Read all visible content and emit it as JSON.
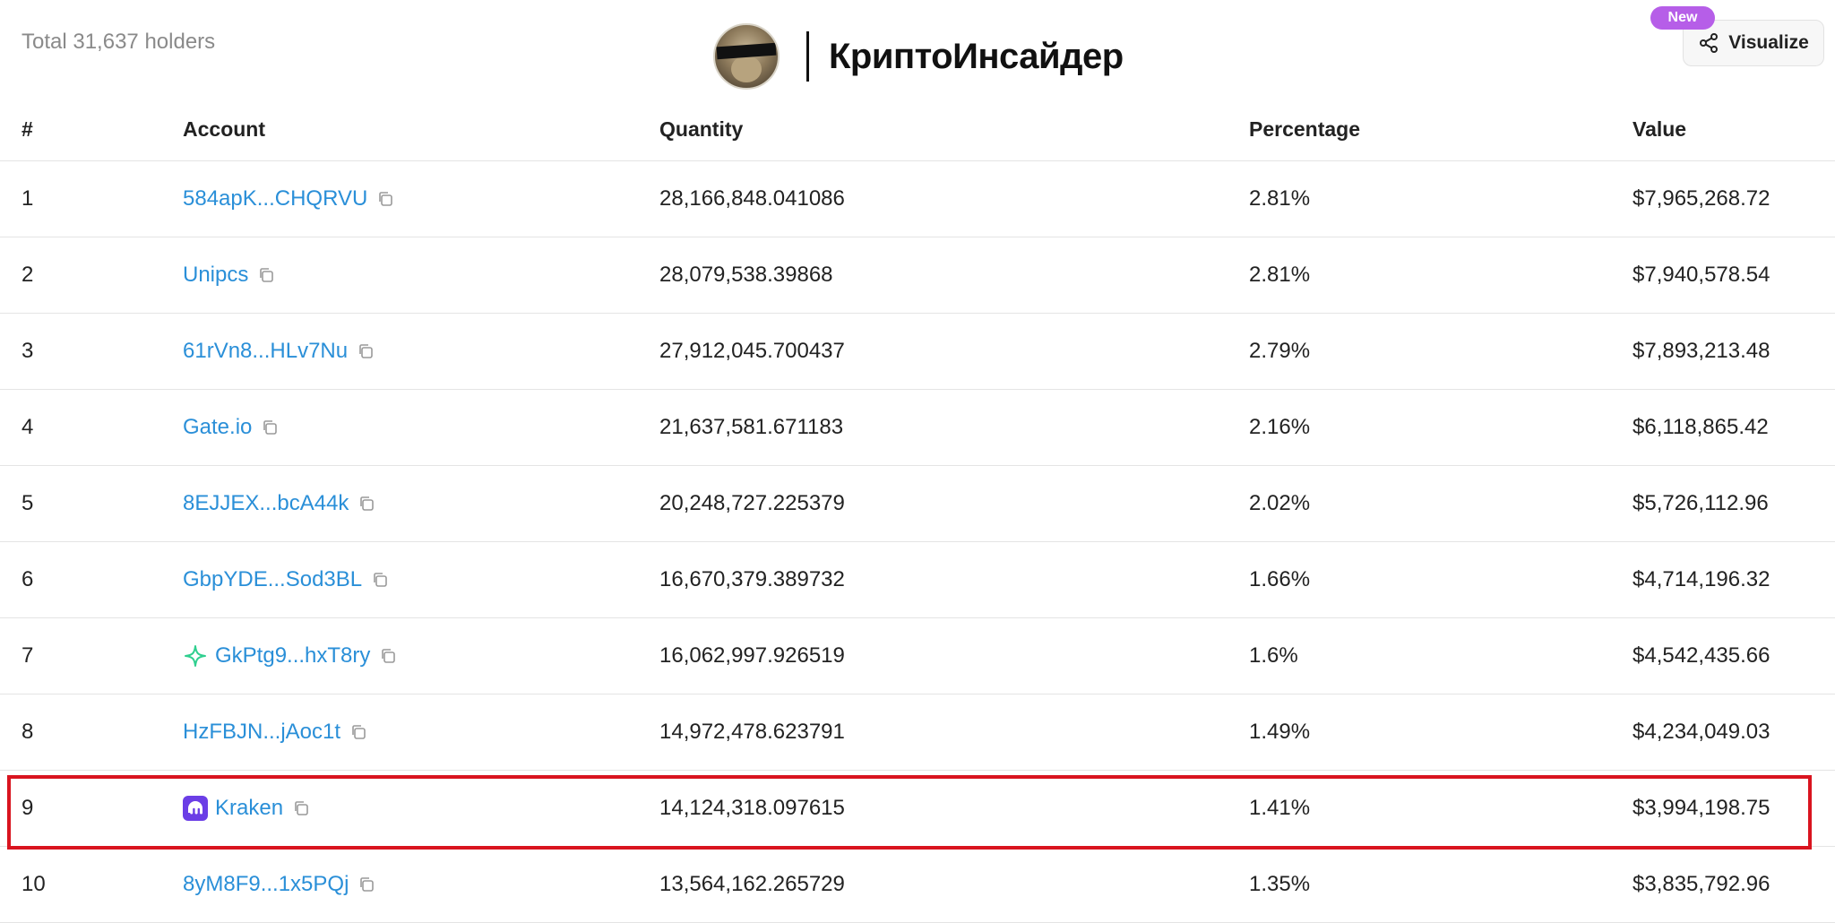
{
  "header": {
    "total_holders": "Total 31,637 holders",
    "brand_name": "КриптоИнсайдер",
    "visualize_label": "Visualize",
    "new_badge": "New"
  },
  "table": {
    "columns": [
      "#",
      "Account",
      "Quantity",
      "Percentage",
      "Value"
    ],
    "rows": [
      {
        "rank": "1",
        "account": "584apK...CHQRVU",
        "quantity": "28,166,848.041086",
        "percentage": "2.81%",
        "value": "$7,965,268.72",
        "icon": null
      },
      {
        "rank": "2",
        "account": "Unipcs",
        "quantity": "28,079,538.39868",
        "percentage": "2.81%",
        "value": "$7,940,578.54",
        "icon": null
      },
      {
        "rank": "3",
        "account": "61rVn8...HLv7Nu",
        "quantity": "27,912,045.700437",
        "percentage": "2.79%",
        "value": "$7,893,213.48",
        "icon": null
      },
      {
        "rank": "4",
        "account": "Gate.io",
        "quantity": "21,637,581.671183",
        "percentage": "2.16%",
        "value": "$6,118,865.42",
        "icon": null
      },
      {
        "rank": "5",
        "account": "8EJJEX...bcA44k",
        "quantity": "20,248,727.225379",
        "percentage": "2.02%",
        "value": "$5,726,112.96",
        "icon": null
      },
      {
        "rank": "6",
        "account": "GbpYDE...Sod3BL",
        "quantity": "16,670,379.389732",
        "percentage": "1.66%",
        "value": "$4,714,196.32",
        "icon": null
      },
      {
        "rank": "7",
        "account": "GkPtg9...hxT8ry",
        "quantity": "16,062,997.926519",
        "percentage": "1.6%",
        "value": "$4,542,435.66",
        "icon": "sparkle-icon"
      },
      {
        "rank": "8",
        "account": "HzFBJN...jAoc1t",
        "quantity": "14,972,478.623791",
        "percentage": "1.49%",
        "value": "$4,234,049.03",
        "icon": null
      },
      {
        "rank": "9",
        "account": "Kraken",
        "quantity": "14,124,318.097615",
        "percentage": "1.41%",
        "value": "$3,994,198.75",
        "icon": "kraken-logo-icon",
        "highlighted": true
      },
      {
        "rank": "10",
        "account": "8yM8F9...1x5PQj",
        "quantity": "13,564,162.265729",
        "percentage": "1.35%",
        "value": "$3,835,792.96",
        "icon": null
      }
    ]
  },
  "colors": {
    "link": "#2a8fd8",
    "highlight": "#d9141f",
    "badge": "#b65ee8",
    "sparkle": "#2fcf8f",
    "kraken": "#6b3ee6"
  }
}
